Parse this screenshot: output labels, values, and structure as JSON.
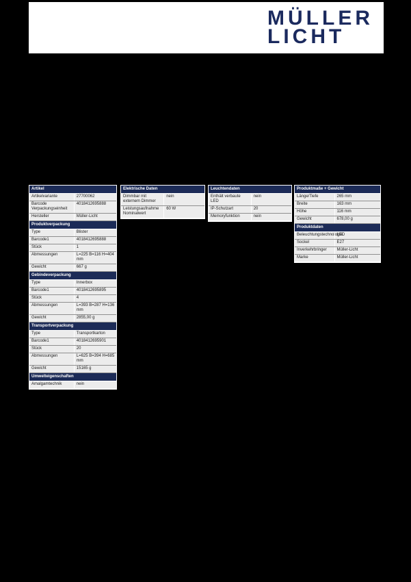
{
  "logo": {
    "line1": "MÜLLER",
    "line2": "LICHT",
    "color": "#1b2a5e"
  },
  "colors": {
    "page_background": "#000000",
    "header_band": "#ffffff",
    "table_header_bg": "#1c2b57",
    "table_row_bg": "#ececec"
  },
  "tables": [
    {
      "id": "artikel",
      "sections": [
        {
          "title": "Artikel",
          "rows": [
            {
              "label": "Artikelvariante",
              "value": "27700062"
            },
            {
              "label": "Barcode Verpackungseinheit",
              "value": "4018412695888"
            },
            {
              "label": "Hersteller",
              "value": "Müller-Licht"
            }
          ]
        },
        {
          "title": "Produktverpackung",
          "rows": [
            {
              "label": "Type",
              "value": "Blister"
            },
            {
              "label": "Barcode1",
              "value": "4018412695888"
            },
            {
              "label": "Stück",
              "value": "1"
            },
            {
              "label": "Abmessungen",
              "value": "L=225 B=116 H=404 mm"
            },
            {
              "label": "Gewicht",
              "value": "667 g"
            }
          ]
        },
        {
          "title": "Gebindeverpackung",
          "rows": [
            {
              "label": "Type",
              "value": "Innerbox"
            },
            {
              "label": "Barcode1",
              "value": "4018412695895"
            },
            {
              "label": "Stück",
              "value": "4"
            },
            {
              "label": "Abmessungen",
              "value": "L=393 B=287 H=136 mm"
            },
            {
              "label": "Gewicht",
              "value": "2855,00 g"
            }
          ]
        },
        {
          "title": "Transportverpackung",
          "rows": [
            {
              "label": "Type",
              "value": "Transportkarton"
            },
            {
              "label": "Barcode1",
              "value": "4018412695901"
            },
            {
              "label": "Stück",
              "value": "20"
            },
            {
              "label": "Abmessungen",
              "value": "L=625 B=394 H=685 mm"
            },
            {
              "label": "Gewicht",
              "value": "15165 g"
            }
          ]
        },
        {
          "title": "Umwelteigenschaften",
          "rows": [
            {
              "label": "Amalgamtechnik",
              "value": "nein"
            }
          ]
        }
      ]
    },
    {
      "id": "elektrische",
      "sections": [
        {
          "title": "Elektrische Daten",
          "rows": [
            {
              "label": "Dimmbar mit externem Dimmer",
              "value": "nein"
            },
            {
              "label": "Leistungsaufnahme Nominalwert",
              "value": "60 W"
            }
          ]
        }
      ]
    },
    {
      "id": "leuchten",
      "sections": [
        {
          "title": "Leuchtendaten",
          "rows": [
            {
              "label": "Enthält verbaute LED",
              "value": "nein"
            },
            {
              "label": "IP-Schutzart",
              "value": "20"
            },
            {
              "label": "Memoryfunktion",
              "value": "nein"
            }
          ]
        }
      ]
    },
    {
      "id": "produkt",
      "sections": [
        {
          "title": "Produktmaße + Gewicht",
          "rows": [
            {
              "label": "Länge/Tiefe",
              "value": "265 mm"
            },
            {
              "label": "Breite",
              "value": "163 mm"
            },
            {
              "label": "Höhe",
              "value": "116 mm"
            },
            {
              "label": "Gewicht",
              "value": "678,00 g"
            }
          ]
        },
        {
          "title": "Produktdaten",
          "rows": [
            {
              "label": "Beleuchtungstechnologie",
              "value": "LED"
            },
            {
              "label": "Sockel",
              "value": "E27"
            },
            {
              "label": "Inverkehrbringer",
              "value": "Müller-Licht"
            },
            {
              "label": "Marke",
              "value": "Müller-Licht"
            }
          ]
        }
      ]
    }
  ]
}
